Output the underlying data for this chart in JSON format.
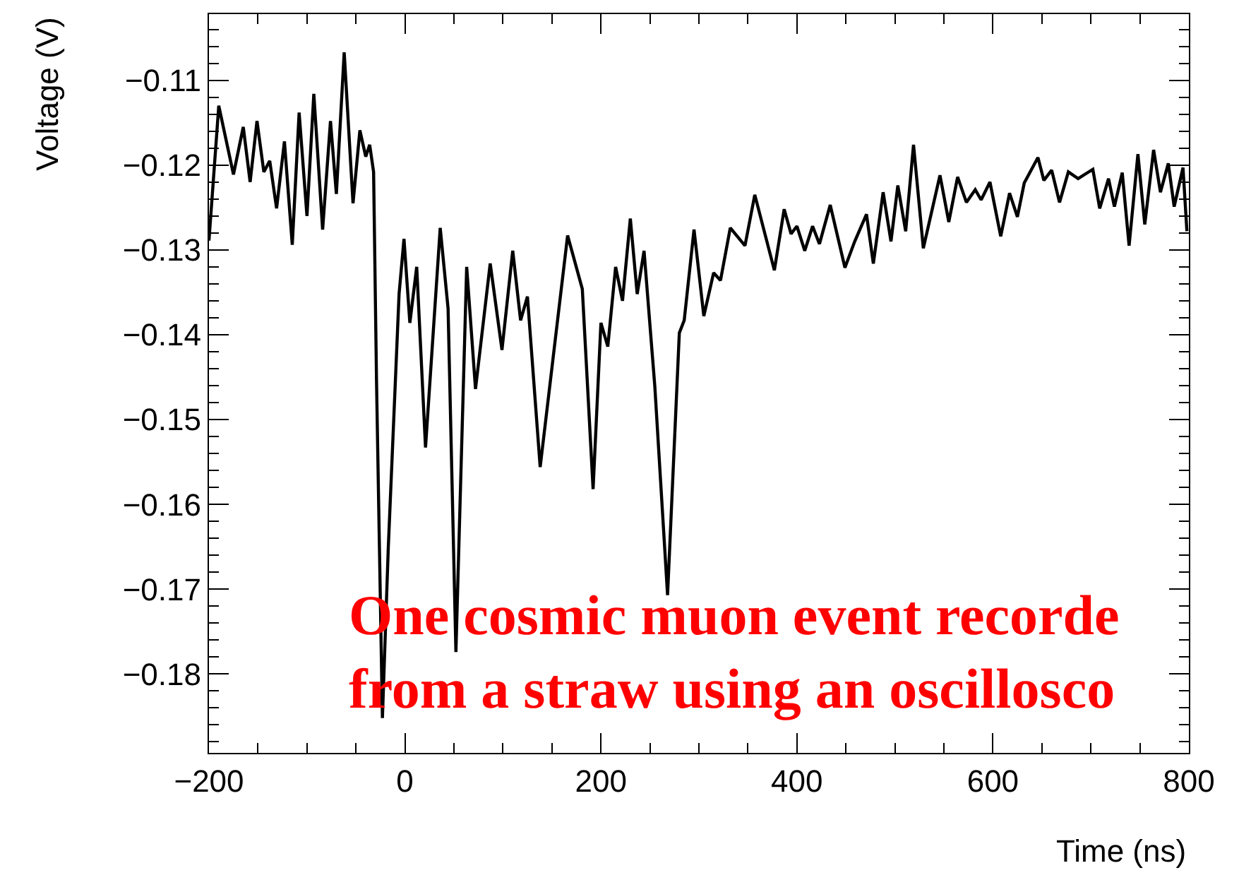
{
  "chart_data": {
    "type": "line",
    "xlabel": "Time (ns)",
    "ylabel": "Voltage (V)",
    "xlim": [
      -200,
      800
    ],
    "xticks": [
      -200,
      0,
      200,
      400,
      600,
      800
    ],
    "ylim": [
      -0.1893,
      -0.1022
    ],
    "yticks": [
      -0.18,
      -0.17,
      -0.16,
      -0.15,
      -0.14,
      -0.13,
      -0.12,
      -0.11
    ],
    "marker": "none",
    "line_style": "solid",
    "annotations": [
      "One cosmic muon event recorde\nfrom a straw using an oscillosco"
    ],
    "series": [
      {
        "color": "#000000",
        "x": [
          -200,
          -190,
          -175,
          -165,
          -158,
          -151,
          -144,
          -138,
          -131,
          -123,
          -115,
          -108,
          -100,
          -93,
          -84,
          -76,
          -70,
          -62,
          -53,
          -46,
          -40,
          -36,
          -32,
          -29,
          -23,
          -17,
          -6,
          -1,
          5,
          12,
          21,
          36,
          44,
          52,
          63,
          72,
          87,
          99,
          110,
          118,
          125,
          138,
          166,
          181,
          192,
          200,
          207,
          215,
          222,
          230,
          237,
          244,
          255,
          268,
          280,
          285,
          295,
          305,
          315,
          322,
          332,
          347,
          357,
          377,
          387,
          394,
          400,
          408,
          416,
          423,
          434,
          449,
          459,
          471,
          478,
          488,
          496,
          503,
          511,
          519,
          529,
          546,
          555,
          564,
          573,
          582,
          588,
          597,
          608,
          617,
          625,
          632,
          646,
          652,
          660,
          668,
          677,
          687,
          702,
          709,
          718,
          724,
          732,
          739,
          748,
          755,
          764,
          771,
          779,
          785,
          794,
          798
        ],
        "values": [
          -0.1289,
          -0.113,
          -0.1211,
          -0.1155,
          -0.122,
          -0.1148,
          -0.1208,
          -0.1195,
          -0.1251,
          -0.1172,
          -0.1294,
          -0.1138,
          -0.126,
          -0.1116,
          -0.1276,
          -0.1148,
          -0.1234,
          -0.1067,
          -0.1245,
          -0.1159,
          -0.119,
          -0.1176,
          -0.1208,
          -0.1455,
          -0.1852,
          -0.1651,
          -0.1352,
          -0.1287,
          -0.1386,
          -0.132,
          -0.1533,
          -0.1274,
          -0.1369,
          -0.1774,
          -0.132,
          -0.1464,
          -0.1316,
          -0.1418,
          -0.1301,
          -0.1383,
          -0.1355,
          -0.1556,
          -0.1283,
          -0.1346,
          -0.1582,
          -0.1386,
          -0.1414,
          -0.132,
          -0.136,
          -0.1263,
          -0.1352,
          -0.1301,
          -0.1461,
          -0.1707,
          -0.1398,
          -0.1383,
          -0.1276,
          -0.1378,
          -0.1327,
          -0.1336,
          -0.1274,
          -0.1295,
          -0.1235,
          -0.1324,
          -0.1252,
          -0.1281,
          -0.1272,
          -0.1301,
          -0.1272,
          -0.1293,
          -0.1247,
          -0.1321,
          -0.129,
          -0.1258,
          -0.1316,
          -0.1232,
          -0.129,
          -0.1224,
          -0.1278,
          -0.1176,
          -0.1298,
          -0.1212,
          -0.1267,
          -0.1214,
          -0.1244,
          -0.1229,
          -0.1241,
          -0.122,
          -0.1284,
          -0.1233,
          -0.1261,
          -0.1221,
          -0.1191,
          -0.1218,
          -0.1206,
          -0.1244,
          -0.1208,
          -0.1216,
          -0.1205,
          -0.1251,
          -0.1216,
          -0.1249,
          -0.1209,
          -0.1295,
          -0.1187,
          -0.127,
          -0.1182,
          -0.1232,
          -0.1198,
          -0.1249,
          -0.1203,
          -0.1278
        ]
      }
    ]
  }
}
